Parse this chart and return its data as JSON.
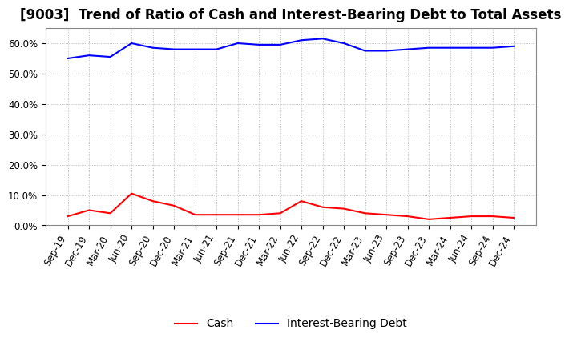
{
  "title": "[9003]  Trend of Ratio of Cash and Interest-Bearing Debt to Total Assets",
  "x_labels": [
    "Sep-19",
    "Dec-19",
    "Mar-20",
    "Jun-20",
    "Sep-20",
    "Dec-20",
    "Mar-21",
    "Jun-21",
    "Sep-21",
    "Dec-21",
    "Mar-22",
    "Jun-22",
    "Sep-22",
    "Dec-22",
    "Mar-23",
    "Jun-23",
    "Sep-23",
    "Dec-23",
    "Mar-24",
    "Jun-24",
    "Sep-24",
    "Dec-24"
  ],
  "cash": [
    3.0,
    5.0,
    4.0,
    10.5,
    8.0,
    6.5,
    3.5,
    3.5,
    3.5,
    3.5,
    4.0,
    8.0,
    6.0,
    5.5,
    4.0,
    3.5,
    3.0,
    2.0,
    2.5,
    3.0,
    3.0,
    2.5
  ],
  "ibd": [
    55.0,
    56.0,
    55.5,
    60.0,
    58.5,
    58.0,
    58.0,
    58.0,
    60.0,
    59.5,
    59.5,
    61.0,
    61.5,
    60.0,
    57.5,
    57.5,
    58.0,
    58.5,
    58.5,
    58.5,
    58.5,
    59.0
  ],
  "cash_color": "#ff0000",
  "ibd_color": "#0000ff",
  "ylim": [
    0,
    65
  ],
  "yticks": [
    0,
    10,
    20,
    30,
    40,
    50,
    60
  ],
  "ytick_labels": [
    "0.0%",
    "10.0%",
    "20.0%",
    "30.0%",
    "40.0%",
    "50.0%",
    "60.0%"
  ],
  "background_color": "#ffffff",
  "grid_color": "#aaaaaa",
  "legend_cash": "Cash",
  "legend_ibd": "Interest-Bearing Debt",
  "title_fontsize": 12,
  "axis_fontsize": 8.5,
  "legend_fontsize": 10,
  "line_width": 1.5
}
